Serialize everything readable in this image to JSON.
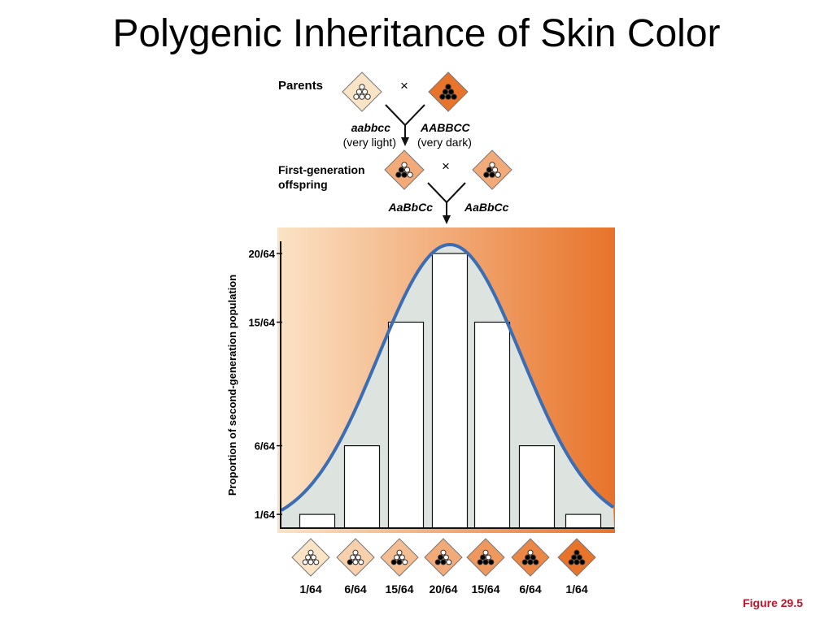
{
  "slide": {
    "title": "Polygenic Inheritance of Skin Color",
    "figure_label": "Figure 29.5"
  },
  "cross": {
    "parents_label": "Parents",
    "times_symbol": "×",
    "parent_left": {
      "genotype": "aabbcc",
      "phenotype": "(very light)",
      "dark_alleles": 0
    },
    "parent_right": {
      "genotype": "AABBCC",
      "phenotype": "(very dark)",
      "dark_alleles": 6
    },
    "f1_label_line1": "First-generation",
    "f1_label_line2": "offspring",
    "f1_left": {
      "genotype": "AaBbCc",
      "dark_alleles": 3
    },
    "f1_right": {
      "genotype": "AaBbCc",
      "dark_alleles": 3
    }
  },
  "colors": {
    "gradient_light": "#fbe3c6",
    "gradient_dark": "#e8732a",
    "curve": "#3b6db5",
    "curve_fill": "#dde3df",
    "bar_fill": "#ffffff",
    "allele_dark": "#000000",
    "allele_light": "#ffffff",
    "figure_label": "#c0142b"
  },
  "chart_data": {
    "type": "bar",
    "ylabel": "Proportion of second-generation population",
    "xlabel": "",
    "y_tick_labels": [
      "1/64",
      "6/64",
      "15/64",
      "20/64"
    ],
    "y_tick_values": [
      1,
      6,
      15,
      20
    ],
    "ylim": [
      0,
      20
    ],
    "categories": [
      "0",
      "1",
      "2",
      "3",
      "4",
      "5",
      "6"
    ],
    "dark_alleles": [
      0,
      1,
      2,
      3,
      4,
      5,
      6
    ],
    "values": [
      1,
      6,
      15,
      20,
      15,
      6,
      1
    ],
    "x_labels": [
      "1/64",
      "6/64",
      "15/64",
      "20/64",
      "15/64",
      "6/64",
      "1/64"
    ],
    "overlay": "normal distribution curve",
    "grid": false
  }
}
